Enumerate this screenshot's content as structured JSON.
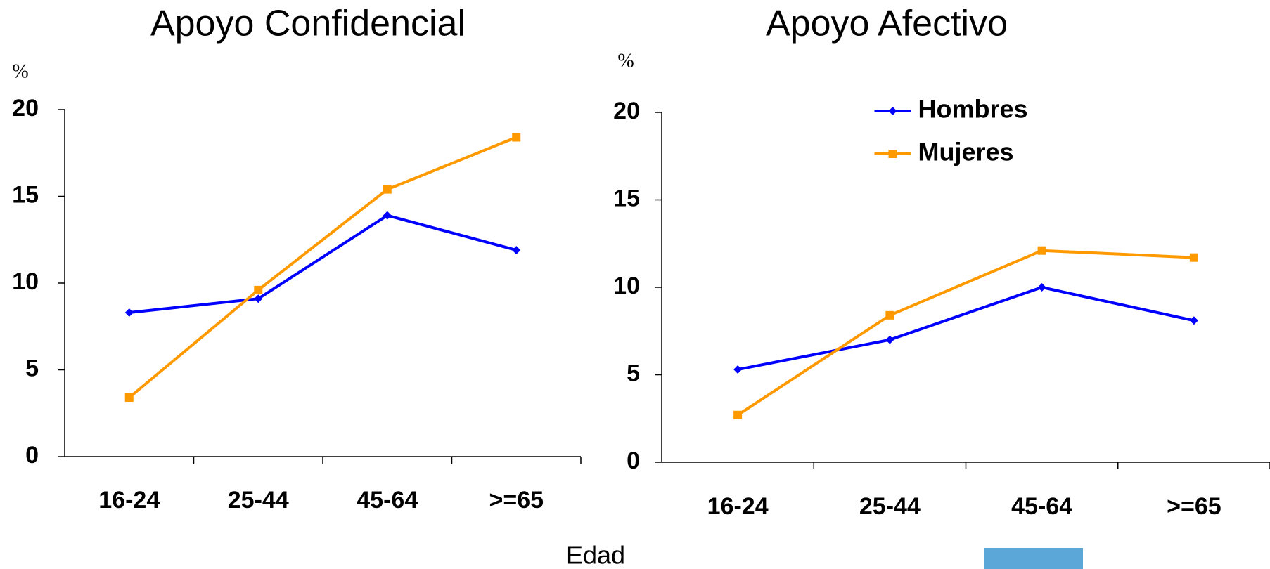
{
  "chart_data": [
    {
      "type": "line",
      "title": "Apoyo Confidencial",
      "ylabel": "%",
      "categories": [
        "16-24",
        "25-44",
        "45-64",
        ">=65"
      ],
      "series": [
        {
          "name": "Hombres",
          "color": "#0000ff",
          "marker": "diamond",
          "values": [
            8.3,
            9.1,
            13.9,
            11.9
          ]
        },
        {
          "name": "Mujeres",
          "color": "#ff9900",
          "marker": "square",
          "values": [
            3.4,
            9.6,
            15.4,
            18.4
          ]
        }
      ],
      "ylim": [
        0,
        20
      ],
      "yticks": [
        0,
        5,
        10,
        15,
        20
      ],
      "legend": false
    },
    {
      "type": "line",
      "title": "Apoyo Afectivo",
      "ylabel": "%",
      "categories": [
        "16-24",
        "25-44",
        "45-64",
        ">=65"
      ],
      "series": [
        {
          "name": "Hombres",
          "color": "#0000ff",
          "marker": "diamond",
          "values": [
            5.3,
            7.0,
            10.0,
            8.1
          ]
        },
        {
          "name": "Mujeres",
          "color": "#ff9900",
          "marker": "square",
          "values": [
            2.7,
            8.4,
            12.1,
            11.7
          ]
        }
      ],
      "ylim": [
        0,
        20
      ],
      "yticks": [
        0,
        5,
        10,
        15,
        20
      ],
      "legend": "upper center"
    }
  ],
  "xlabel": "Edad"
}
